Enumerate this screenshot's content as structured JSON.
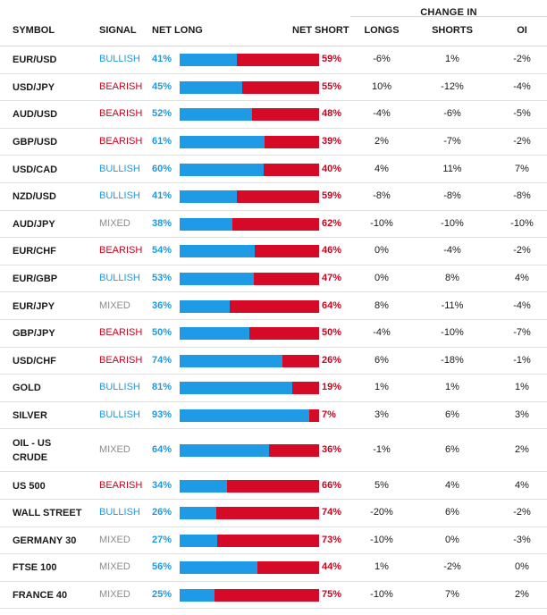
{
  "header": {
    "group_label": "CHANGE IN",
    "columns": {
      "symbol": "SYMBOL",
      "signal": "SIGNAL",
      "net_long": "NET LONG",
      "net_short": "NET SHORT",
      "longs": "LONGS",
      "shorts": "SHORTS",
      "oi": "OI"
    }
  },
  "colors": {
    "bullish": "#1c9ae0",
    "bearish": "#c9041f",
    "mixed": "#8c8c8c",
    "bar_long": "#1f9ae4",
    "bar_short": "#d40a26"
  },
  "rows": [
    {
      "symbol": "EUR/USD",
      "signal": "BULLISH",
      "net_long": "41%",
      "net_short": "59%",
      "long_value": 41,
      "longs": "-6%",
      "shorts": "1%",
      "oi": "-2%"
    },
    {
      "symbol": "USD/JPY",
      "signal": "BEARISH",
      "net_long": "45%",
      "net_short": "55%",
      "long_value": 45,
      "longs": "10%",
      "shorts": "-12%",
      "oi": "-4%"
    },
    {
      "symbol": "AUD/USD",
      "signal": "BEARISH",
      "net_long": "52%",
      "net_short": "48%",
      "long_value": 52,
      "longs": "-4%",
      "shorts": "-6%",
      "oi": "-5%"
    },
    {
      "symbol": "GBP/USD",
      "signal": "BEARISH",
      "net_long": "61%",
      "net_short": "39%",
      "long_value": 61,
      "longs": "2%",
      "shorts": "-7%",
      "oi": "-2%"
    },
    {
      "symbol": "USD/CAD",
      "signal": "BULLISH",
      "net_long": "60%",
      "net_short": "40%",
      "long_value": 60,
      "longs": "4%",
      "shorts": "11%",
      "oi": "7%"
    },
    {
      "symbol": "NZD/USD",
      "signal": "BULLISH",
      "net_long": "41%",
      "net_short": "59%",
      "long_value": 41,
      "longs": "-8%",
      "shorts": "-8%",
      "oi": "-8%"
    },
    {
      "symbol": "AUD/JPY",
      "signal": "MIXED",
      "net_long": "38%",
      "net_short": "62%",
      "long_value": 38,
      "longs": "-10%",
      "shorts": "-10%",
      "oi": "-10%"
    },
    {
      "symbol": "EUR/CHF",
      "signal": "BEARISH",
      "net_long": "54%",
      "net_short": "46%",
      "long_value": 54,
      "longs": "0%",
      "shorts": "-4%",
      "oi": "-2%"
    },
    {
      "symbol": "EUR/GBP",
      "signal": "BULLISH",
      "net_long": "53%",
      "net_short": "47%",
      "long_value": 53,
      "longs": "0%",
      "shorts": "8%",
      "oi": "4%"
    },
    {
      "symbol": "EUR/JPY",
      "signal": "MIXED",
      "net_long": "36%",
      "net_short": "64%",
      "long_value": 36,
      "longs": "8%",
      "shorts": "-11%",
      "oi": "-4%"
    },
    {
      "symbol": "GBP/JPY",
      "signal": "BEARISH",
      "net_long": "50%",
      "net_short": "50%",
      "long_value": 50,
      "longs": "-4%",
      "shorts": "-10%",
      "oi": "-7%"
    },
    {
      "symbol": "USD/CHF",
      "signal": "BEARISH",
      "net_long": "74%",
      "net_short": "26%",
      "long_value": 74,
      "longs": "6%",
      "shorts": "-18%",
      "oi": "-1%"
    },
    {
      "symbol": "GOLD",
      "signal": "BULLISH",
      "net_long": "81%",
      "net_short": "19%",
      "long_value": 81,
      "longs": "1%",
      "shorts": "1%",
      "oi": "1%"
    },
    {
      "symbol": "SILVER",
      "signal": "BULLISH",
      "net_long": "93%",
      "net_short": "7%",
      "long_value": 93,
      "longs": "3%",
      "shorts": "6%",
      "oi": "3%"
    },
    {
      "symbol": "OIL - US CRUDE",
      "symbol_line1": "OIL - US",
      "symbol_line2": "CRUDE",
      "signal": "MIXED",
      "net_long": "64%",
      "net_short": "36%",
      "long_value": 64,
      "longs": "-1%",
      "shorts": "6%",
      "oi": "2%"
    },
    {
      "symbol": "US 500",
      "signal": "BEARISH",
      "net_long": "34%",
      "net_short": "66%",
      "long_value": 34,
      "longs": "5%",
      "shorts": "4%",
      "oi": "4%"
    },
    {
      "symbol": "WALL STREET",
      "signal": "BULLISH",
      "net_long": "26%",
      "net_short": "74%",
      "long_value": 26,
      "longs": "-20%",
      "shorts": "6%",
      "oi": "-2%"
    },
    {
      "symbol": "GERMANY 30",
      "signal": "MIXED",
      "net_long": "27%",
      "net_short": "73%",
      "long_value": 27,
      "longs": "-10%",
      "shorts": "0%",
      "oi": "-3%"
    },
    {
      "symbol": "FTSE 100",
      "signal": "MIXED",
      "net_long": "56%",
      "net_short": "44%",
      "long_value": 56,
      "longs": "1%",
      "shorts": "-2%",
      "oi": "0%"
    },
    {
      "symbol": "FRANCE 40",
      "signal": "MIXED",
      "net_long": "25%",
      "net_short": "75%",
      "long_value": 25,
      "longs": "-10%",
      "shorts": "7%",
      "oi": "2%"
    }
  ]
}
